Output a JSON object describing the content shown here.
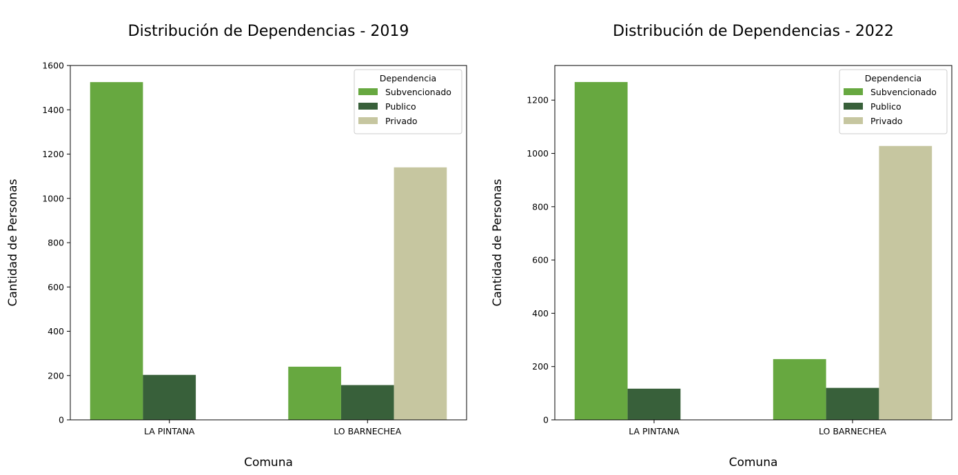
{
  "chart_data": [
    {
      "type": "bar",
      "title": "Distribución de Dependencias - 2019",
      "xlabel": "Comuna",
      "ylabel": "Cantidad de Personas",
      "categories": [
        "LA PINTANA",
        "LO BARNECHEA"
      ],
      "series": [
        {
          "name": "Subvencionado",
          "values": [
            1525,
            240
          ],
          "color": "#67a840"
        },
        {
          "name": "Publico",
          "values": [
            203,
            157
          ],
          "color": "#38603a"
        },
        {
          "name": "Privado",
          "values": [
            0,
            1140
          ],
          "color": "#c6c6a0"
        }
      ],
      "ylim": [
        0,
        1600
      ],
      "yticks": [
        0,
        200,
        400,
        600,
        800,
        1000,
        1200,
        1400,
        1600
      ],
      "legend": {
        "title": "Dependencia",
        "placement": "top-right"
      },
      "grid": false
    },
    {
      "type": "bar",
      "title": "Distribución de Dependencias - 2022",
      "xlabel": "Comuna",
      "ylabel": "Cantidad de Personas",
      "categories": [
        "LA PINTANA",
        "LO BARNECHEA"
      ],
      "series": [
        {
          "name": "Subvencionado",
          "values": [
            1268,
            228
          ],
          "color": "#67a840"
        },
        {
          "name": "Publico",
          "values": [
            117,
            120
          ],
          "color": "#38603a"
        },
        {
          "name": "Privado",
          "values": [
            0,
            1028
          ],
          "color": "#c6c6a0"
        }
      ],
      "ylim": [
        0,
        1330
      ],
      "yticks": [
        0,
        200,
        400,
        600,
        800,
        1000,
        1200
      ],
      "legend": {
        "title": "Dependencia",
        "placement": "top-right"
      },
      "grid": false
    }
  ]
}
